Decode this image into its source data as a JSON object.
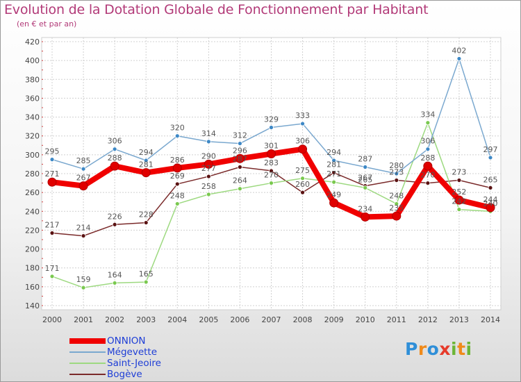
{
  "title": "Evolution de la Dotation Globale de Fonctionnement par Habitant",
  "subtitle": "(en € et par an)",
  "logo_text": "Proxiti",
  "colors": {
    "title": "#b23a78",
    "legend_text": "#1d3dd6",
    "grid": "#d0d0d0"
  },
  "chart_data": {
    "type": "line",
    "x": [
      "2000",
      "2001",
      "2002",
      "2003",
      "2004",
      "2005",
      "2006",
      "2007",
      "2008",
      "2009",
      "2010",
      "2011",
      "2012",
      "2013",
      "2014"
    ],
    "ylim": [
      140,
      420
    ],
    "yticks": [
      140,
      160,
      180,
      200,
      220,
      240,
      260,
      280,
      300,
      320,
      340,
      360,
      380,
      400,
      420
    ],
    "xlabel": "",
    "ylabel": "",
    "grid": true,
    "legend_position": "bottom-left",
    "series": [
      {
        "name": "Bogève",
        "color": "#7a2a2a",
        "marker": "#5a1212",
        "values": [
          217,
          214,
          226,
          228,
          269,
          277,
          287,
          283,
          260,
          281,
          267,
          273,
          270,
          273,
          265
        ],
        "labels": [
          "217",
          "214",
          "226",
          "228",
          "269",
          "277",
          "287",
          "283",
          "260",
          "281",
          "267",
          "273",
          "270",
          "273",
          "265"
        ]
      },
      {
        "name": "Saint-Jeoire",
        "color": "#9dd980",
        "marker": "#7ac94f",
        "values": [
          171,
          159,
          164,
          165,
          248,
          258,
          264,
          270,
          275,
          271,
          265,
          248,
          334,
          242,
          240
        ],
        "labels": [
          "171",
          "159",
          "164",
          "165",
          "248",
          "258",
          "264",
          "270",
          "275",
          "271",
          "265",
          "248",
          "334",
          "242",
          "240"
        ]
      },
      {
        "name": "Mégevette",
        "color": "#7aa8cf",
        "marker": "#3d88c6",
        "values": [
          295,
          285,
          306,
          294,
          320,
          314,
          312,
          329,
          333,
          294,
          287,
          280,
          306,
          402,
          297
        ],
        "labels": [
          "295",
          "285",
          "306",
          "294",
          "320",
          "314",
          "312",
          "329",
          "333",
          "294",
          "287",
          "280",
          "306",
          "402",
          "297"
        ]
      },
      {
        "name": "ONNION",
        "color": "#f00000",
        "marker": "#e00000",
        "values": [
          271,
          267,
          288,
          281,
          286,
          290,
          296,
          301,
          306,
          249,
          234,
          235,
          288,
          252,
          244
        ],
        "labels": [
          "271",
          "267",
          "288",
          "281",
          "286",
          "290",
          "296",
          "301",
          "306",
          "249",
          "234",
          "235",
          "288",
          "252",
          "244"
        ]
      }
    ]
  },
  "legend": [
    {
      "name": "ONNION",
      "color": "#f00000",
      "thickness": 8
    },
    {
      "name": "Mégevette",
      "color": "#7aa8cf",
      "thickness": 2
    },
    {
      "name": "Saint-Jeoire",
      "color": "#9dd980",
      "thickness": 2
    },
    {
      "name": "Bogève",
      "color": "#7a2a2a",
      "thickness": 2
    }
  ]
}
